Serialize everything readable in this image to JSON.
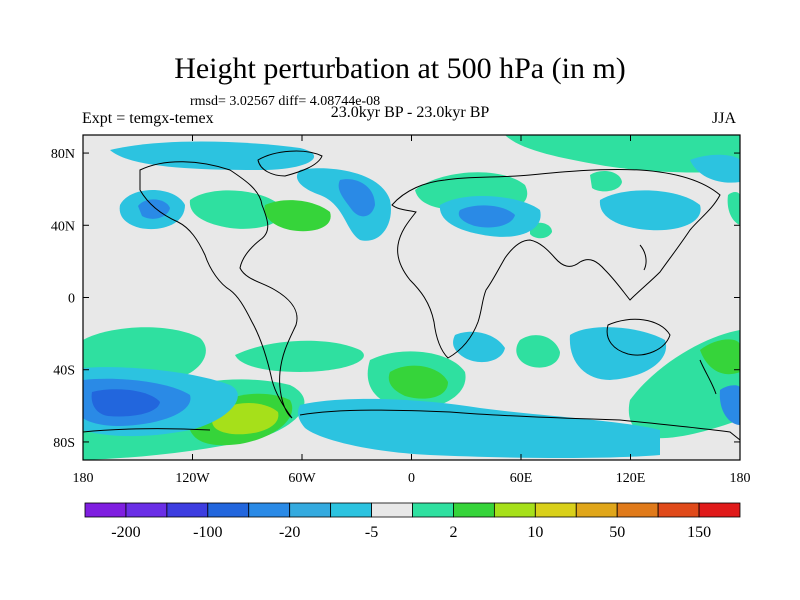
{
  "title": "Height perturbation at 500 hPa (in m)",
  "stats": "rmsd= 3.02567 diff= 4.08744e-08",
  "expt": "Expt = temgx-temex",
  "period": "23.0kyr BP - 23.0kyr BP",
  "season": "JJA",
  "map": {
    "lat_labels": [
      "80N",
      "40N",
      "0",
      "40S",
      "80S"
    ],
    "lat_values": [
      80,
      40,
      0,
      -40,
      -80
    ],
    "lon_labels": [
      "180",
      "120W",
      "60W",
      "0",
      "60E",
      "120E",
      "180"
    ],
    "lon_values": [
      -180,
      -120,
      -60,
      0,
      60,
      120,
      180
    ],
    "lat_range": [
      -90,
      90
    ],
    "lon_range": [
      -180,
      180
    ],
    "background_color": "#e8e8e8"
  },
  "colorbar": {
    "labels": [
      "-200",
      "-100",
      "-20",
      "-5",
      "2",
      "10",
      "50",
      "150"
    ],
    "colors": [
      "#7f1ee0",
      "#6a2ee6",
      "#3d3de0",
      "#2266dd",
      "#2a8ae6",
      "#34aadf",
      "#2cc3e0",
      "#e8e8e8",
      "#2fe0a0",
      "#36d43a",
      "#a6e01a",
      "#d9d01a",
      "#e0a61a",
      "#e07a1a",
      "#e04a1a",
      "#e01a1a"
    ]
  },
  "icons": [
    "world-coastlines-icon"
  ]
}
